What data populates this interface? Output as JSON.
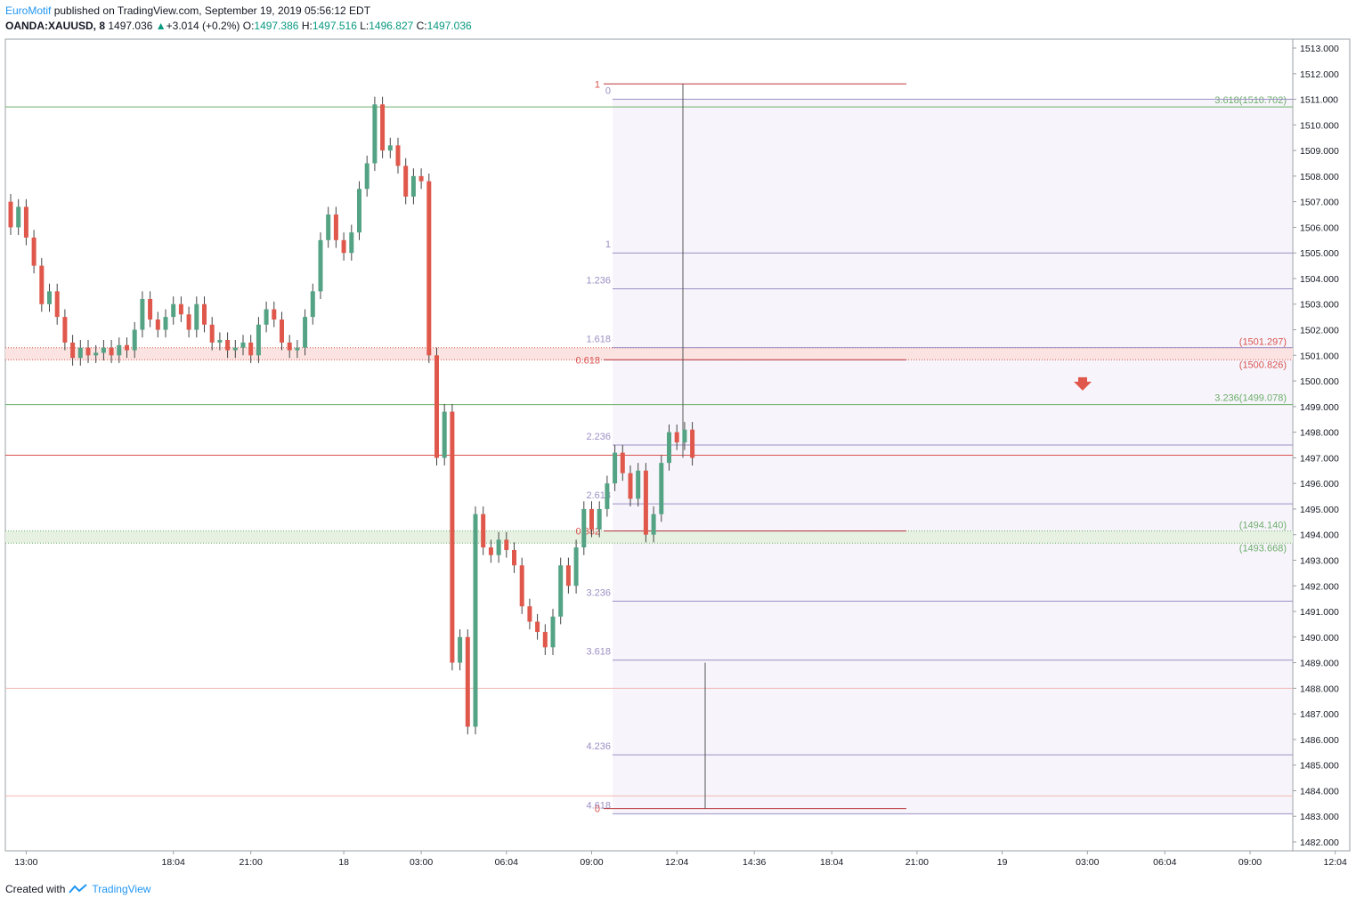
{
  "header": {
    "author": "EuroMotif",
    "published_text": "published on TradingView.com, September 19, 2019 05:56:12 EDT",
    "symbol": "OANDA:XAUUSD, 8",
    "last": "1497.036",
    "change_arrow": "▲",
    "change": "+3.014 (+0.2%)",
    "o_label": "O:",
    "o_value": "1497.386",
    "h_label": "H:",
    "h_value": "1497.516",
    "l_label": "L:",
    "l_value": "1496.827",
    "c_label": "C:",
    "c_value": "1497.036"
  },
  "footer": {
    "created_with": "Created with",
    "brand": "TradingView"
  },
  "colors": {
    "up": "#53a384",
    "down": "#e0584b",
    "grid": "#e6e6e6",
    "fib_purple": "#9c8fc4",
    "fib_red": "#d9534f",
    "fib_green": "#6dae6a",
    "zone_red": "#fbe3e1",
    "zone_green": "#e6f1e2",
    "zone_fib": "#f7f5fb",
    "arrow": "#e0584b"
  },
  "chart_data": {
    "type": "candlestick",
    "ylim": [
      1482.0,
      1513.0
    ],
    "y_ticks": [
      "1513.000",
      "1512.000",
      "1511.000",
      "1510.000",
      "1509.000",
      "1508.000",
      "1507.000",
      "1506.000",
      "1505.000",
      "1504.000",
      "1503.000",
      "1502.000",
      "1501.000",
      "1500.000",
      "1499.000",
      "1498.000",
      "1497.000",
      "1496.000",
      "1495.000",
      "1494.000",
      "1493.000",
      "1492.000",
      "1491.000",
      "1490.000",
      "1489.000",
      "1488.000",
      "1487.000",
      "1486.000",
      "1485.000",
      "1484.000",
      "1483.000",
      "1482.000"
    ],
    "x_ticks": [
      "13:00",
      "18:04",
      "21:00",
      "18",
      "03:00",
      "06:04",
      "09:00",
      "12:04",
      "14:36",
      "18:04",
      "21:00",
      "19",
      "03:00",
      "06:04",
      "09:00",
      "12:04"
    ],
    "x_tick_index": [
      2,
      21,
      31,
      43,
      53,
      64,
      75,
      86,
      96,
      106,
      117,
      128,
      139,
      149,
      160,
      171
    ],
    "candles": [
      [
        1507.0,
        1506.0
      ],
      [
        1506.0,
        1506.8
      ],
      [
        1506.8,
        1505.6
      ],
      [
        1505.6,
        1504.5
      ],
      [
        1504.5,
        1503.0
      ],
      [
        1503.0,
        1503.5
      ],
      [
        1503.5,
        1502.5
      ],
      [
        1502.5,
        1501.5
      ],
      [
        1501.5,
        1500.9
      ],
      [
        1500.9,
        1501.3
      ],
      [
        1501.3,
        1501.0
      ],
      [
        1501.0,
        1501.1
      ],
      [
        1501.1,
        1501.3
      ],
      [
        1501.3,
        1501.0
      ],
      [
        1501.0,
        1501.4
      ],
      [
        1501.4,
        1501.2
      ],
      [
        1501.2,
        1502.0
      ],
      [
        1502.0,
        1503.2
      ],
      [
        1503.2,
        1502.4
      ],
      [
        1502.4,
        1502.0
      ],
      [
        1502.0,
        1502.5
      ],
      [
        1502.5,
        1503.0
      ],
      [
        1503.0,
        1502.6
      ],
      [
        1502.6,
        1502.0
      ],
      [
        1502.0,
        1503.0
      ],
      [
        1503.0,
        1502.2
      ],
      [
        1502.2,
        1501.5
      ],
      [
        1501.5,
        1501.6
      ],
      [
        1501.6,
        1501.2
      ],
      [
        1501.2,
        1501.3
      ],
      [
        1501.3,
        1501.5
      ],
      [
        1501.5,
        1501.0
      ],
      [
        1501.0,
        1502.2
      ],
      [
        1502.2,
        1502.8
      ],
      [
        1502.8,
        1502.4
      ],
      [
        1502.4,
        1501.5
      ],
      [
        1501.5,
        1501.2
      ],
      [
        1501.2,
        1501.3
      ],
      [
        1501.3,
        1502.5
      ],
      [
        1502.5,
        1503.5
      ],
      [
        1503.5,
        1505.5
      ],
      [
        1505.5,
        1506.5
      ],
      [
        1506.5,
        1505.5
      ],
      [
        1505.5,
        1505.0
      ],
      [
        1505.0,
        1505.8
      ],
      [
        1505.8,
        1507.5
      ],
      [
        1507.5,
        1508.5
      ],
      [
        1508.5,
        1510.8
      ],
      [
        1510.8,
        1509.0
      ],
      [
        1509.0,
        1509.2
      ],
      [
        1509.2,
        1508.4
      ],
      [
        1508.4,
        1507.2
      ],
      [
        1507.2,
        1508.0
      ],
      [
        1508.0,
        1507.8
      ],
      [
        1507.8,
        1501.0
      ],
      [
        1501.0,
        1497.0
      ],
      [
        1497.0,
        1498.8
      ],
      [
        1498.8,
        1489.0
      ],
      [
        1489.0,
        1490.0
      ],
      [
        1490.0,
        1486.5
      ],
      [
        1486.5,
        1494.8
      ],
      [
        1494.8,
        1493.5
      ],
      [
        1493.5,
        1493.2
      ],
      [
        1493.2,
        1493.8
      ],
      [
        1493.8,
        1493.4
      ],
      [
        1493.4,
        1492.8
      ],
      [
        1492.8,
        1491.2
      ],
      [
        1491.2,
        1490.6
      ],
      [
        1490.6,
        1490.2
      ],
      [
        1490.2,
        1489.6
      ],
      [
        1489.6,
        1490.8
      ],
      [
        1490.8,
        1492.8
      ],
      [
        1492.8,
        1492.0
      ],
      [
        1492.0,
        1493.5
      ],
      [
        1493.5,
        1495.0
      ],
      [
        1495.0,
        1494.2
      ],
      [
        1494.2,
        1495.0
      ],
      [
        1495.0,
        1496.0
      ],
      [
        1496.0,
        1497.2
      ],
      [
        1497.2,
        1496.4
      ],
      [
        1496.4,
        1495.4
      ],
      [
        1495.4,
        1496.5
      ],
      [
        1496.5,
        1494.0
      ],
      [
        1494.0,
        1494.8
      ],
      [
        1494.8,
        1496.8
      ],
      [
        1496.8,
        1498.0
      ],
      [
        1498.0,
        1497.6
      ],
      [
        1497.6,
        1498.1
      ],
      [
        1498.1,
        1497.0
      ]
    ],
    "fib_levels_purple": [
      {
        "label": "0",
        "value": 1511.0
      },
      {
        "label": "1",
        "value": 1505.0
      },
      {
        "label": "1.236",
        "value": 1503.6
      },
      {
        "label": "1.618",
        "value": 1501.3
      },
      {
        "label": "2.236",
        "value": 1497.5
      },
      {
        "label": "2.618",
        "value": 1495.2
      },
      {
        "label": "3.236",
        "value": 1491.4
      },
      {
        "label": "3.618",
        "value": 1489.1
      },
      {
        "label": "4.236",
        "value": 1485.4
      },
      {
        "label": "4.618",
        "value": 1483.1
      }
    ],
    "fib_retracement_red": [
      {
        "label": "1",
        "value": 1511.6
      },
      {
        "label": "0.618",
        "value": 1500.826
      },
      {
        "label": "0.382",
        "value": 1494.14
      },
      {
        "label": "0",
        "value": 1483.3
      }
    ],
    "horizontal_lines": [
      {
        "label": "3.618(1510.702)",
        "value": 1510.702,
        "color": "green"
      },
      {
        "label": "3.236(1499.078)",
        "value": 1499.078,
        "color": "green"
      },
      {
        "label": "",
        "value": 1497.1,
        "color": "red"
      },
      {
        "label": "",
        "value": 1488.0,
        "color": "redlight"
      },
      {
        "label": "",
        "value": 1483.8,
        "color": "redlight"
      }
    ],
    "zones": [
      {
        "top": 1501.297,
        "bottom": 1500.826,
        "color": "red",
        "top_label": "(1501.297)",
        "bottom_label": "(1500.826)"
      },
      {
        "top": 1494.14,
        "bottom": 1493.668,
        "color": "green",
        "top_label": "(1494.140)",
        "bottom_label": "(1493.668)"
      }
    ],
    "arrow_marker": {
      "direction": "down",
      "value": 1499.8
    }
  }
}
